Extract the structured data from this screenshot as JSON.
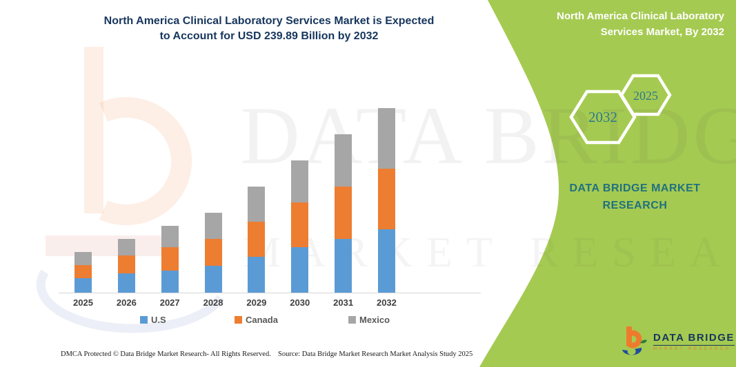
{
  "header": {
    "title_line1": "North America Clinical Laboratory Services Market is Expected",
    "title_line2": "to Account for USD 239.89 Billion by 2032"
  },
  "panel": {
    "title_line1": "North America Clinical Laboratory",
    "title_line2": "Services Market, By 2032",
    "hexagons": [
      {
        "label": "2032"
      },
      {
        "label": "2025"
      }
    ],
    "brand_line1": "DATA BRIDGE MARKET",
    "brand_line2": "RESEARCH",
    "colors": {
      "background": "#a5ca51",
      "teal": "#2d7a8c",
      "white": "#ffffff"
    }
  },
  "watermark": {
    "line1": "DATA BRIDGE",
    "line2": "MARKET RESEARCH"
  },
  "chart_data": {
    "type": "bar",
    "stacked": true,
    "title": "North America Clinical Laboratory Services Market is Expected to Account for USD 239.89 Billion by 2032",
    "unit": "USD Billion",
    "categories": [
      "2025",
      "2026",
      "2027",
      "2028",
      "2029",
      "2030",
      "2031",
      "2032"
    ],
    "series": [
      {
        "name": "U.S",
        "color": "#5b9bd5",
        "values": [
          19,
          25,
          29,
          35,
          47,
          59,
          70,
          82
        ]
      },
      {
        "name": "Canada",
        "color": "#ed7d31",
        "values": [
          17,
          23,
          30,
          35,
          45,
          58,
          68,
          79
        ]
      },
      {
        "name": "Mexico",
        "color": "#a6a6a6",
        "values": [
          17,
          22,
          28,
          34,
          46,
          55,
          68,
          78.89
        ]
      }
    ],
    "totals": [
      53,
      70,
      87,
      104,
      138,
      172,
      206,
      239.89
    ],
    "xlabel": "",
    "ylabel": "",
    "ylim": [
      0,
      250
    ],
    "grid": false,
    "legend_position": "bottom"
  },
  "logo": {
    "name": "DATA BRIDGE",
    "subtext": "MARKET RESEARCH"
  },
  "footer": {
    "left": "DMCA Protected © Data Bridge Market Research-  All Rights Reserved.",
    "right": "Source: Data Bridge Market Research  Market Analysis Study 2025"
  }
}
